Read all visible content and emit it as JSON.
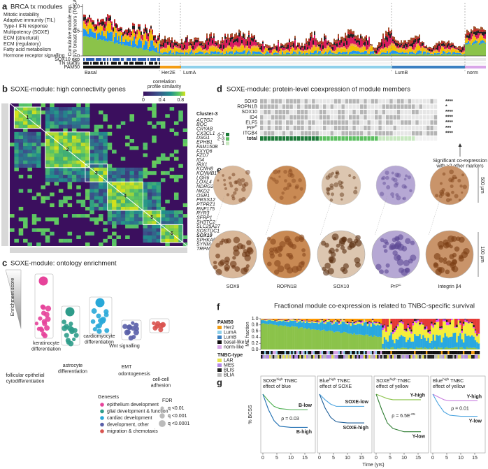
{
  "panel_a": {
    "letter": "a",
    "title": "BRCA tx modules",
    "legend": [
      {
        "name": "Mitotic instability",
        "color": "#2196f3"
      },
      {
        "name": "Adaptive immunity (TIL)",
        "color": "#f2c200"
      },
      {
        "name": "Type-I IFN response",
        "color": "#f5a54a"
      },
      {
        "name": "Multipotency (SOXE)",
        "color": "#8bc34a"
      },
      {
        "name": "ECM (structural)",
        "color": "#d81b60"
      },
      {
        "name": "ECM (regulatory)",
        "color": "#222222"
      },
      {
        "name": "Fatty acid metabolism",
        "color": "#c62828"
      },
      {
        "name": "Hormone receptor signalling",
        "color": "#a0522d"
      }
    ],
    "ylabel": [
      "Cumulative module exp.",
      "in 979 breast cancers (TCGA)"
    ],
    "ylim": [
      0,
      1.05
    ],
    "yticks": [
      {
        "value": 1,
        "label": "1.0"
      },
      0.5,
      0
    ],
    "tracks": [
      "SOX10 exp",
      "TN status",
      "PAM50"
    ],
    "subtypes": [
      "Basal",
      "Her2E",
      "LumA",
      "LumB",
      "norm"
    ]
  },
  "panel_b": {
    "letter": "b",
    "title": "SOXE-module: high connectivity genes",
    "colorbar_label": [
      "correlation",
      "profile similarity"
    ],
    "colorbar_lim": [
      0,
      0.9
    ],
    "colorbar_ticks": [
      0,
      0.4,
      0.8
    ],
    "clusters": [
      "1",
      "2",
      "3",
      "4",
      "5",
      "6"
    ],
    "gene_list_title": "Cluster-3",
    "genes": [
      {
        "name": "ACTG2"
      },
      {
        "name": "BOC"
      },
      {
        "name": "CRYAB"
      },
      {
        "name": "CX3CL1"
      },
      {
        "name": "DSG1"
      },
      {
        "name": "EPHB1"
      },
      {
        "name": "FAM150B"
      },
      {
        "name": "FXYD6"
      },
      {
        "name": "FZD7"
      },
      {
        "name": "ID4"
      },
      {
        "name": "IRX1"
      },
      {
        "name": "KCNH8"
      },
      {
        "name": "KCNMB1"
      },
      {
        "name": "LGR6"
      },
      {
        "name": "LOXL4"
      },
      {
        "name": "NDRG2"
      },
      {
        "name": "NKD2"
      },
      {
        "name": "OSR1"
      },
      {
        "name": "PRSS12"
      },
      {
        "name": "PTPRZ1"
      },
      {
        "name": "RNF175"
      },
      {
        "name": "RYR3"
      },
      {
        "name": "SFRP1"
      },
      {
        "name": "SH3TC2"
      },
      {
        "name": "SLC25A27"
      },
      {
        "name": "SOSTDC1"
      },
      {
        "name": "SOX10",
        "color": "#3a9a3a"
      },
      {
        "name": "SPHKAP"
      },
      {
        "name": "SYNM"
      },
      {
        "name": "TRPM6"
      }
    ]
  },
  "panel_c": {
    "letter": "c",
    "title": "SOXE-module: ontology enrichment",
    "y_label": "Enrichment score",
    "terms": [
      {
        "label": [
          "keratinocyte",
          "differentiation"
        ],
        "color": "#e6439a"
      },
      {
        "label": [
          "follicular epithelial",
          "cytodifferentiation"
        ],
        "color": "#e6439a"
      },
      {
        "label": [
          "astrocyte",
          "differentiation"
        ],
        "color": "#2e9c8a"
      },
      {
        "label": [
          "cardiomyocyte",
          "differentiation"
        ],
        "color": "#29a8d8"
      },
      {
        "label": [
          "Wnt signalling"
        ],
        "color": "#5a5fa8"
      },
      {
        "label": [
          "EMT"
        ],
        "color": "#5a5fa8"
      },
      {
        "label": [
          "odontogenesis"
        ],
        "color": "#5a5fa8"
      },
      {
        "label": [
          "cell-cell",
          "adhesion"
        ],
        "color": "#d9534f"
      }
    ],
    "genesets_title": "Genesets",
    "genesets": [
      {
        "name": "epithelium development",
        "color": "#e6439a"
      },
      {
        "name": "glial development & function",
        "color": "#2e9c8a"
      },
      {
        "name": "cardiac development",
        "color": "#29a8d8"
      },
      {
        "name": "development, other",
        "color": "#5a5fa8"
      },
      {
        "name": "migration & chemotaxis",
        "color": "#d9534f"
      }
    ],
    "fdr_title": "FDR",
    "fdr": [
      "q <0.01",
      "q <0.001",
      "q <0.0001"
    ]
  },
  "panel_d": {
    "letter": "d",
    "title": "SOXE-module: protein-level coexpression of module members",
    "rows": [
      {
        "name": "SOX9",
        "sig": "****"
      },
      {
        "name": "ROPN1B",
        "sig": "*"
      },
      {
        "name": "SOX10",
        "sig": "****"
      },
      {
        "name": "ID4",
        "sig": "****"
      },
      {
        "name": "ELF5",
        "sig": "****"
      },
      {
        "name": "PrP",
        "sup": "C",
        "sig": "***"
      },
      {
        "name": "ITGB4",
        "sig": "****"
      }
    ],
    "total": "total",
    "levels": [
      {
        "label": "4-7",
        "color": "#1e7a3a"
      },
      {
        "label": "2-3",
        "color": "#5cbf60"
      },
      {
        "label": "1",
        "color": "#c8e8c0"
      }
    ],
    "note": [
      "Significant co-expression",
      "with ≥2 other markers"
    ]
  },
  "panel_e": {
    "letter": "e",
    "stains": [
      {
        "name": "SOX9"
      },
      {
        "name": "ROPN1B"
      },
      {
        "name": "SOX10"
      },
      {
        "name": "PrP",
        "sup": "C"
      },
      {
        "name": "Integrin β4"
      }
    ],
    "scale": [
      "500 µm",
      "100 µm"
    ]
  },
  "panel_f": {
    "letter": "f",
    "title": "Fractional module co-expression is related to TNBC-specific survival",
    "ylabel": "ME fraction",
    "ylim": [
      0,
      1
    ],
    "yticks": [
      {
        "value": 0,
        "label": "0.0"
      },
      0.2,
      0.4,
      0.6,
      0.8,
      {
        "value": 1,
        "label": "1.0"
      }
    ],
    "pam50_title": "PAM50",
    "pam50": [
      {
        "name": "Her2",
        "color": "#f39c12"
      },
      {
        "name": "LumA",
        "color": "#8fd0ea"
      },
      {
        "name": "LumB",
        "color": "#3a7fc1"
      },
      {
        "name": "basal-like",
        "color": "#111111"
      },
      {
        "name": "norm-like",
        "color": "#d9a6e8"
      }
    ],
    "tnbc_title": "TNBC-type",
    "tnbc": [
      {
        "name": "LAR",
        "color": "#e8e44a"
      },
      {
        "name": "MES",
        "color": "#b58be6"
      },
      {
        "name": "BLIS",
        "color": "#222222"
      },
      {
        "name": "BLIA",
        "color": "#bbbbbb"
      }
    ]
  },
  "panel_g": {
    "letter": "g",
    "ylabel": "% BCSS",
    "xlabel": "Time (yrs)",
    "xlim": [
      0,
      18
    ],
    "xticks": [
      0,
      5,
      10,
      15
    ],
    "ylim": [
      0,
      100
    ],
    "plots": [
      {
        "title": {
          "name": "SOXE",
          "sup": "high",
          "rest": " TNBC"
        },
        "subtitle": "effect of blue",
        "p": {
          "name": "ρ = 0.03"
        },
        "series": [
          {
            "name": "B-low",
            "color": "#4caf50",
            "x": [
              0,
              2,
              4,
              6,
              10,
              16
            ],
            "values": [
              100,
              88,
              78,
              74,
              72,
              72
            ]
          },
          {
            "name": "B-high",
            "color": "#1f6fb2",
            "x": [
              0,
              2,
              4,
              6,
              10,
              16
            ],
            "values": [
              100,
              72,
              52,
              42,
              40,
              40
            ]
          }
        ]
      },
      {
        "title": {
          "name": "Blue",
          "sup": "high",
          "rest": " TNBC"
        },
        "subtitle": "effect of SOXE",
        "series": [
          {
            "name": "SOXE-low",
            "color": "#4aa3df",
            "x": [
              0,
              2,
              4,
              6,
              10,
              16
            ],
            "values": [
              100,
              90,
              82,
              78,
              78,
              78
            ]
          },
          {
            "name": "SOXE-high",
            "color": "#1f5f99",
            "x": [
              0,
              2,
              4,
              6,
              10,
              16
            ],
            "values": [
              100,
              75,
              58,
              50,
              48,
              48
            ]
          }
        ]
      },
      {
        "title": {
          "name": "SOXE",
          "sup": "high",
          "rest": " TNBC"
        },
        "subtitle": "effect of yellow",
        "p": {
          "name": "ρ = 6.5E",
          "sup": "-05"
        },
        "series": [
          {
            "name": "Y-high",
            "color": "#8bc34a",
            "x": [
              0,
              2,
              4,
              6,
              10,
              16
            ],
            "values": [
              100,
              96,
              92,
              90,
              90,
              90
            ]
          },
          {
            "name": "Y-low",
            "color": "#2e7d32",
            "x": [
              0,
              2,
              4,
              6,
              10,
              16
            ],
            "values": [
              100,
              72,
              48,
              38,
              32,
              32
            ]
          }
        ]
      },
      {
        "title": {
          "name": "Blue",
          "sup": "high",
          "rest": " TNBC"
        },
        "subtitle": "effect of yellow",
        "p": {
          "name": "ρ = 0.01"
        },
        "series": [
          {
            "name": "Y-high",
            "color": "#c77dde",
            "x": [
              0,
              2,
              4,
              6,
              10,
              16
            ],
            "values": [
              100,
              95,
              90,
              88,
              88,
              88
            ]
          },
          {
            "name": "Y-low",
            "color": "#4aa3df",
            "x": [
              0,
              2,
              4,
              6,
              10,
              16
            ],
            "values": [
              100,
              82,
              68,
              62,
              60,
              60
            ]
          }
        ]
      }
    ]
  }
}
